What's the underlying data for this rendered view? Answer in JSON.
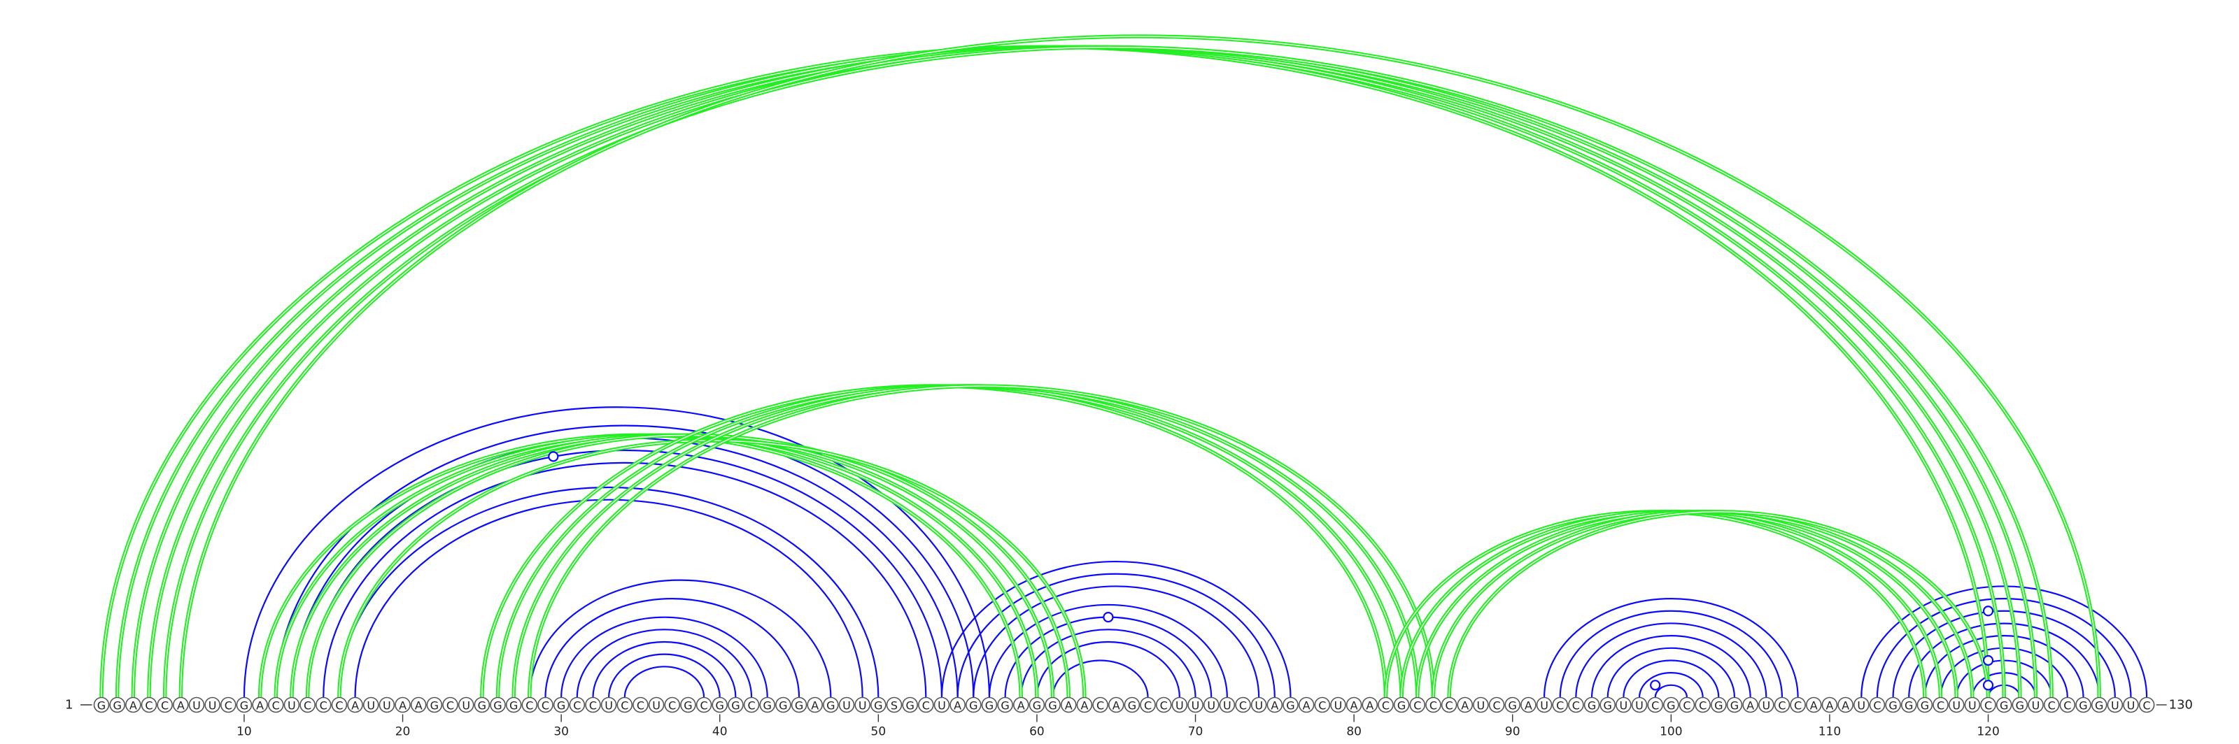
{
  "sequence": "GGACCAUUCGACUCCCAUUAAGCUGGGCCGCCUCCUCGCGGCGGGAGUUGSGCUAGGGAGGAACAGCCUUUUCUAGACUAACGCCCAUCGAUCCGGUUCGCCGGAUCCAAAUCGGGCUUCGGUCCGGUUC",
  "start_label": "1",
  "end_label": "130",
  "ticks": [
    "10",
    "20",
    "30",
    "40",
    "50",
    "60",
    "70",
    "80",
    "90",
    "100",
    "110",
    "120"
  ],
  "colors": {
    "blue": "#0a0aff",
    "green": "#22ee22",
    "text": "#222222"
  },
  "chart_data": {
    "type": "arc-diagram",
    "length": 130,
    "blue_arcs": [
      [
        10,
        57
      ],
      [
        12,
        56
      ],
      [
        13,
        55
      ],
      [
        14,
        54
      ],
      [
        15,
        53
      ],
      [
        16,
        50
      ],
      [
        17,
        49
      ],
      [
        28,
        47
      ],
      [
        29,
        45
      ],
      [
        30,
        43
      ],
      [
        31,
        42
      ],
      [
        32,
        41
      ],
      [
        33,
        40
      ],
      [
        34,
        39
      ],
      [
        54,
        76
      ],
      [
        55,
        75
      ],
      [
        56,
        74
      ],
      [
        57,
        72
      ],
      [
        58,
        71
      ],
      [
        59,
        70
      ],
      [
        60,
        69
      ],
      [
        61,
        67
      ],
      [
        92,
        108
      ],
      [
        93,
        107
      ],
      [
        94,
        106
      ],
      [
        95,
        105
      ],
      [
        96,
        104
      ],
      [
        97,
        103
      ],
      [
        98,
        102
      ],
      [
        99,
        101
      ],
      [
        112,
        130
      ],
      [
        113,
        129
      ],
      [
        114,
        128
      ],
      [
        115,
        127
      ],
      [
        116,
        126
      ],
      [
        117,
        125
      ],
      [
        118,
        124
      ],
      [
        119,
        123
      ],
      [
        120,
        122
      ]
    ],
    "green_arcs": [
      [
        1,
        120
      ],
      [
        2,
        121
      ],
      [
        3,
        122
      ],
      [
        4,
        123
      ],
      [
        5,
        124
      ],
      [
        6,
        127
      ],
      [
        11,
        59
      ],
      [
        12,
        60
      ],
      [
        13,
        61
      ],
      [
        14,
        62
      ],
      [
        16,
        63
      ],
      [
        25,
        82
      ],
      [
        26,
        83
      ],
      [
        27,
        84
      ],
      [
        28,
        85
      ],
      [
        82,
        116
      ],
      [
        83,
        117
      ],
      [
        84,
        118
      ],
      [
        85,
        119
      ],
      [
        86,
        120
      ]
    ],
    "markers": [
      {
        "position": 66.5,
        "color": "green",
        "arc": [
          1,
          130
        ]
      },
      {
        "position": 29.5,
        "color": "blue",
        "arc": [
          10,
          49
        ]
      },
      {
        "position": 64.5,
        "color": "blue",
        "arc": [
          58,
          71
        ]
      },
      {
        "position": 99,
        "color": "blue",
        "arc": [
          98,
          100
        ]
      },
      {
        "position": 120,
        "color": "blue",
        "arc": [
          113,
          127
        ]
      },
      {
        "position": 120,
        "color": "blue",
        "arc": [
          117,
          123
        ]
      },
      {
        "position": 120,
        "color": "blue",
        "arc": [
          119,
          121
        ]
      }
    ]
  }
}
